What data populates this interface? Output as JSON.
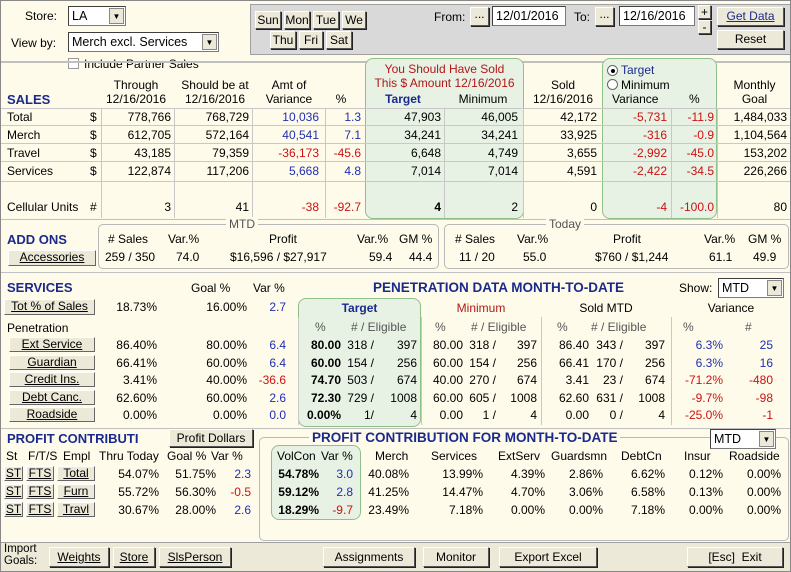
{
  "filters": {
    "store_label": "Store:",
    "store_value": "LA",
    "viewby_label": "View by:",
    "viewby_value": "Merch excl. Services",
    "partner_label": "Include Partner Sales"
  },
  "days": {
    "row1": [
      "Sun",
      "Mon",
      "Tue",
      "We"
    ],
    "row2": [
      "Thu",
      "Fri",
      "Sat"
    ]
  },
  "dates": {
    "from_label": "From:",
    "from_value": "12/01/2016",
    "to_label": "To:",
    "to_value": "12/16/2016",
    "dots": "...",
    "plus": "+",
    "minus": "-"
  },
  "actions": {
    "get_data": "Get Data",
    "reset": "Reset"
  },
  "sales": {
    "title": "SALES",
    "headers": {
      "through": "Through\n12/16/2016",
      "should": "Should be at\n12/16/2016",
      "amt": "Amt of\nVariance",
      "pct": "%",
      "should_sold": "You Should Have Sold\nThis $ Amount 12/16/2016",
      "target": "Target",
      "minimum": "Minimum",
      "sold": "Sold\n12/16/2016",
      "radio_target": "Target",
      "radio_minimum": "Minimum",
      "variance": "Variance",
      "var_pct": "%",
      "monthly": "Monthly\nGoal"
    },
    "rows": [
      {
        "label": "Total",
        "cur": "$",
        "through": "778,766",
        "should": "768,729",
        "amt": "10,036",
        "pct": "1.3",
        "target": "47,903",
        "minimum": "46,005",
        "sold": "42,172",
        "variance": "-5,731",
        "var_pct": "-11.9",
        "monthly": "1,484,033"
      },
      {
        "label": "Merch",
        "cur": "$",
        "through": "612,705",
        "should": "572,164",
        "amt": "40,541",
        "pct": "7.1",
        "target": "34,241",
        "minimum": "34,241",
        "sold": "33,925",
        "variance": "-316",
        "var_pct": "-0.9",
        "monthly": "1,104,564"
      },
      {
        "label": "Travel",
        "cur": "$",
        "through": "43,185",
        "should": "79,359",
        "amt": "-36,173",
        "pct": "-45.6",
        "target": "6,648",
        "minimum": "4,749",
        "sold": "3,655",
        "variance": "-2,992",
        "var_pct": "-45.0",
        "monthly": "153,202"
      },
      {
        "label": "Services",
        "cur": "$",
        "through": "122,874",
        "should": "117,206",
        "amt": "5,668",
        "pct": "4.8",
        "target": "7,014",
        "minimum": "7,014",
        "sold": "4,591",
        "variance": "-2,422",
        "var_pct": "-34.5",
        "monthly": "226,266"
      }
    ],
    "cellular": {
      "label": "Cellular Units",
      "cur": "#",
      "through": "3",
      "should": "41",
      "amt": "-38",
      "pct": "-92.7",
      "target": "4",
      "minimum": "2",
      "sold": "0",
      "variance": "-4",
      "var_pct": "-100.0",
      "monthly": "80"
    }
  },
  "addons": {
    "title": "ADD ONS",
    "accessories": "Accessories",
    "mtd": "MTD",
    "today": "Today",
    "mtd_headers": [
      "# Sales",
      "Var.%",
      "Profit",
      "Var.%",
      "GM %"
    ],
    "mtd_values": [
      "259 / 350",
      "74.0",
      "$16,596 / $27,917",
      "59.4",
      "44.4"
    ],
    "today_headers": [
      "# Sales",
      "Var.%",
      "Profit",
      "Var.%",
      "GM %"
    ],
    "today_values": [
      "11 / 20",
      "55.0",
      "$760 / $1,244",
      "61.1",
      "49.9"
    ]
  },
  "services": {
    "title": "SERVICES",
    "goal_hdr": "Goal %",
    "var_hdr": "Var %",
    "tot_label": "Tot % of Sales",
    "tot_value": "18.73%",
    "tot_goal": "16.00%",
    "tot_var": "2.7",
    "pen_label": "Penetration",
    "rows": [
      {
        "label": "Ext Service",
        "value": "86.40%",
        "goal": "80.00%",
        "var": "6.4"
      },
      {
        "label": "Guardian",
        "value": "66.41%",
        "goal": "60.00%",
        "var": "6.4"
      },
      {
        "label": "Credit Ins.",
        "value": "3.41%",
        "goal": "40.00%",
        "var": "-36.6"
      },
      {
        "label": "Debt Canc.",
        "value": "62.60%",
        "goal": "60.00%",
        "var": "2.6"
      },
      {
        "label": "Roadside",
        "value": "0.00%",
        "goal": "0.00%",
        "var": "0.0"
      }
    ]
  },
  "penetration": {
    "title": "PENETRATION DATA MONTH-TO-DATE",
    "show_label": "Show:",
    "show_value": "MTD",
    "groups": [
      "Target",
      "Minimum",
      "Sold MTD",
      "Variance"
    ],
    "sub": [
      "%",
      "# / Eligible",
      "%",
      "# / Eligible",
      "%",
      "# / Eligible",
      "%",
      "#"
    ],
    "rows": [
      [
        "80.00",
        "318 /",
        "397",
        "80.00",
        "318 /",
        "397",
        "86.40",
        "343 /",
        "397",
        "6.3%",
        "25"
      ],
      [
        "60.00",
        "154 /",
        "256",
        "60.00",
        "154 /",
        "256",
        "66.41",
        "170 /",
        "256",
        "6.3%",
        "16"
      ],
      [
        "74.70",
        "503 /",
        "674",
        "40.00",
        "270 /",
        "674",
        "3.41",
        "23 /",
        "674",
        "-71.2%",
        "-480"
      ],
      [
        "72.30",
        "729 /",
        "1008",
        "60.00",
        "605 /",
        "1008",
        "62.60",
        "631 /",
        "1008",
        "-9.7%",
        "-98"
      ],
      [
        "0.00%",
        "1/",
        "4",
        "0.00",
        "1 /",
        "4",
        "0.00",
        "0 /",
        "4",
        "-25.0%",
        "-1"
      ]
    ]
  },
  "profit": {
    "title": "PROFIT CONTRIBUTI",
    "dollars_btn": "Profit Dollars",
    "title2": "PROFIT CONTRIBUTION FOR MONTH-TO-DATE",
    "sel_value": "MTD",
    "headers": [
      "St",
      "F/T/S",
      "Empl",
      "Thru Today",
      "Goal %",
      "Var %",
      "VolCon",
      "Var %",
      "Merch",
      "Services",
      "ExtServ",
      "Guardsmn",
      "DebtCn",
      "Insur",
      "Roadside"
    ],
    "rows": [
      {
        "st": "ST",
        "fts": "FTS",
        "empl": "Total",
        "thru": "54.07%",
        "goal": "51.75%",
        "var": "2.3",
        "volcon": "54.78%",
        "var2": "3.0",
        "merch": "40.08%",
        "services": "13.99%",
        "extserv": "4.39%",
        "guard": "2.86%",
        "debt": "6.62%",
        "insur": "0.12%",
        "road": "0.00%"
      },
      {
        "st": "ST",
        "fts": "FTS",
        "empl": "Furn",
        "thru": "55.72%",
        "goal": "56.30%",
        "var": "-0.5",
        "volcon": "59.12%",
        "var2": "2.8",
        "merch": "41.25%",
        "services": "14.47%",
        "extserv": "4.70%",
        "guard": "3.06%",
        "debt": "6.58%",
        "insur": "0.13%",
        "road": "0.00%"
      },
      {
        "st": "ST",
        "fts": "FTS",
        "empl": "Travl",
        "thru": "30.67%",
        "goal": "28.00%",
        "var": "2.6",
        "volcon": "18.29%",
        "var2": "-9.7",
        "merch": "23.49%",
        "services": "7.18%",
        "extserv": "0.00%",
        "guard": "0.00%",
        "debt": "7.18%",
        "insur": "0.00%",
        "road": "0.00%"
      }
    ]
  },
  "footer": {
    "import_label": "Import\nGoals:",
    "weights": "Weights",
    "store": "Store",
    "slsperson": "SlsPerson",
    "assignments": "Assignments",
    "monitor": "Monitor",
    "export": "Export Excel",
    "exit": "[Esc]  Exit"
  }
}
